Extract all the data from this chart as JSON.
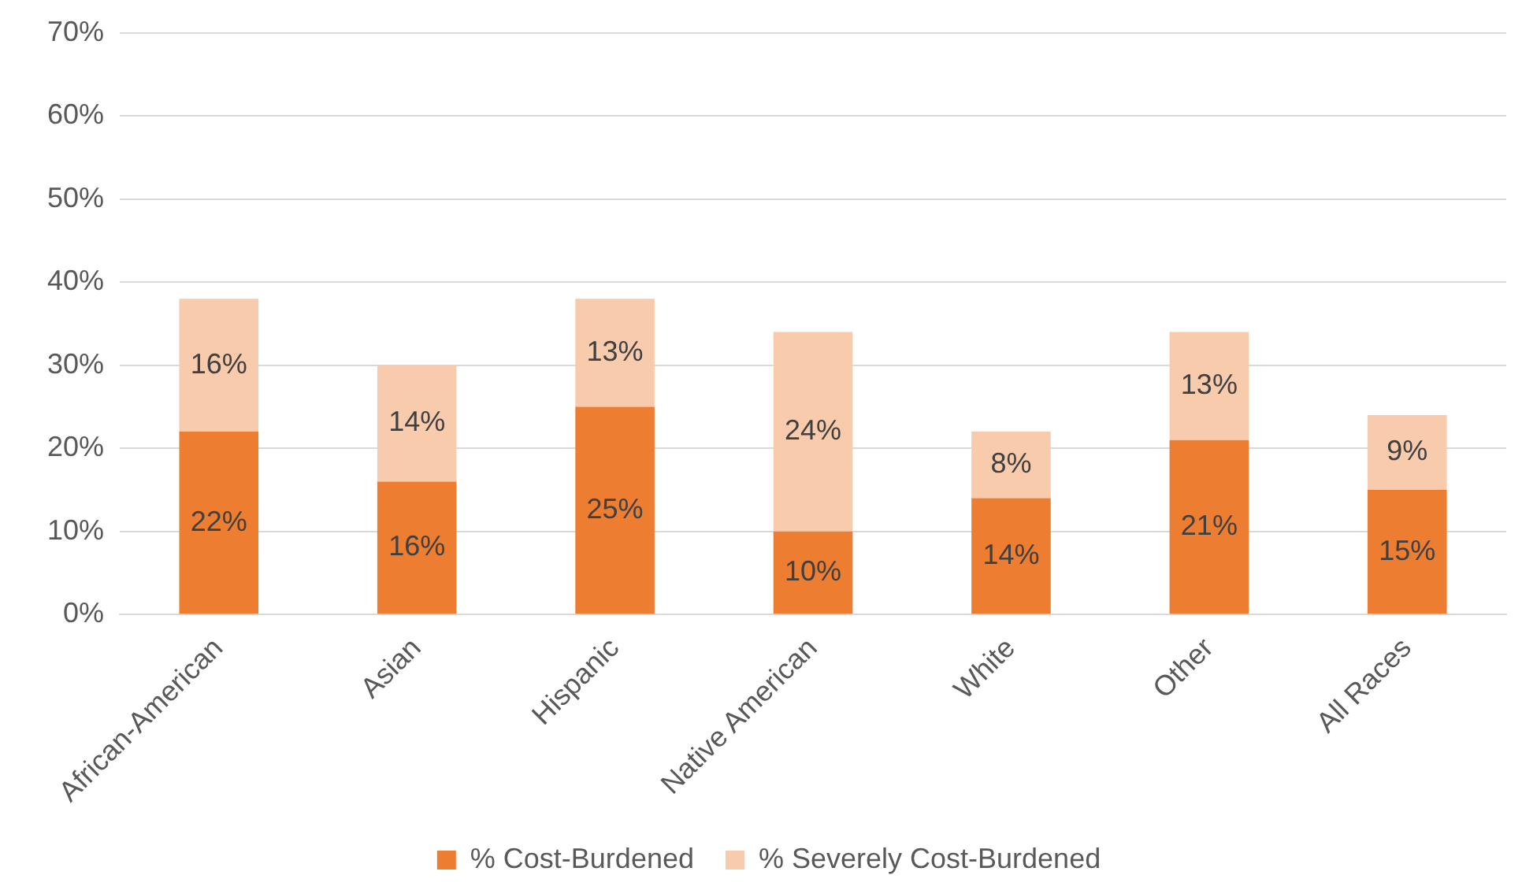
{
  "chart_data": {
    "type": "bar",
    "stacked": true,
    "categories": [
      "African-American",
      "Asian",
      "Hispanic",
      "Native American",
      "White",
      "Other",
      "All Races"
    ],
    "series": [
      {
        "name": "% Cost-Burdened",
        "color": "#ed7d31",
        "values": [
          22,
          16,
          25,
          10,
          14,
          21,
          15
        ],
        "value_labels": [
          "22%",
          "16%",
          "25%",
          "10%",
          "14%",
          "21%",
          "15%"
        ]
      },
      {
        "name": "% Severely Cost-Burdened",
        "color": "#f8cbad",
        "values": [
          16,
          14,
          13,
          24,
          8,
          13,
          9
        ],
        "value_labels": [
          "16%",
          "14%",
          "13%",
          "24%",
          "8%",
          "13%",
          "9%"
        ]
      }
    ],
    "ylim": [
      0,
      70
    ],
    "yticks": [
      {
        "value": 0,
        "label": "0%"
      },
      {
        "value": 10,
        "label": "10%"
      },
      {
        "value": 20,
        "label": "20%"
      },
      {
        "value": 30,
        "label": "30%"
      },
      {
        "value": 40,
        "label": "40%"
      },
      {
        "value": 50,
        "label": "50%"
      },
      {
        "value": 60,
        "label": "60%"
      },
      {
        "value": 70,
        "label": "70%"
      }
    ],
    "grid": "y",
    "legend": "bottom"
  }
}
